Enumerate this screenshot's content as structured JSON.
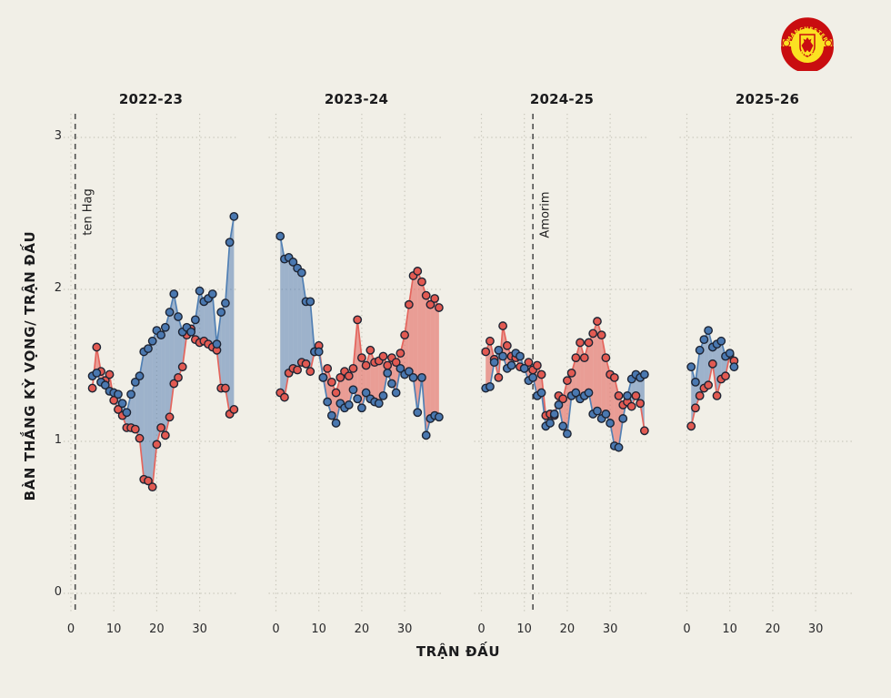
{
  "page": {
    "background": "#f1efe7"
  },
  "crest": {
    "club": "Manchester United",
    "top_text": "MANCHESTER",
    "bottom_text": "UNITED"
  },
  "axes": {
    "x_title": "TRẬN ĐẤU",
    "y_title": "BÀN THẮNG KỲ VỌNG/ TRẬN ĐẤU",
    "y_ticks": [
      0,
      1,
      2,
      3
    ],
    "x_ticks": [
      0,
      10,
      20,
      30
    ]
  },
  "chart_data": {
    "type": "line",
    "title": "",
    "xlabel": "TRẬN ĐẤU",
    "ylabel": "BÀN THẮNG KỲ VỌNG/ TRẬN ĐẤU",
    "ylim": [
      0,
      3.15
    ],
    "xlim": [
      0,
      39
    ],
    "grid": "dotted",
    "legend": "none",
    "facets": [
      {
        "title": "2022-23",
        "x_start": 5,
        "series": [
          {
            "name": "blue",
            "values": [
              1.43,
              1.45,
              1.39,
              1.37,
              1.33,
              1.32,
              1.31,
              1.25,
              1.19,
              1.31,
              1.39,
              1.43,
              1.59,
              1.61,
              1.66,
              1.73,
              1.7,
              1.75,
              1.85,
              1.97,
              1.82,
              1.72,
              1.75,
              1.72,
              1.8,
              1.99,
              1.92,
              1.94,
              1.97,
              1.64,
              1.85,
              1.91,
              2.31,
              2.48
            ]
          },
          {
            "name": "red",
            "values": [
              1.35,
              1.62,
              1.46,
              1.4,
              1.44,
              1.27,
              1.21,
              1.17,
              1.09,
              1.09,
              1.08,
              1.02,
              0.75,
              0.74,
              0.7,
              0.98,
              1.09,
              1.04,
              1.16,
              1.38,
              1.42,
              1.49,
              1.7,
              1.74,
              1.67,
              1.65,
              1.66,
              1.64,
              1.62,
              1.6,
              1.35,
              1.35,
              1.18,
              1.21
            ]
          }
        ]
      },
      {
        "title": "2023-24",
        "x_start": 1,
        "series": [
          {
            "name": "blue",
            "values": [
              2.35,
              2.2,
              2.21,
              2.18,
              2.14,
              2.11,
              1.92,
              1.92,
              1.59,
              1.59,
              1.42,
              1.26,
              1.17,
              1.12,
              1.25,
              1.22,
              1.24,
              1.34,
              1.28,
              1.22,
              1.32,
              1.28,
              1.26,
              1.25,
              1.3,
              1.45,
              1.38,
              1.32,
              1.48,
              1.44,
              1.46,
              1.42,
              1.19,
              1.42,
              1.04,
              1.15,
              1.17,
              1.16
            ]
          },
          {
            "name": "red",
            "values": [
              1.32,
              1.29,
              1.45,
              1.48,
              1.47,
              1.52,
              1.51,
              1.46,
              1.59,
              1.63,
              1.42,
              1.48,
              1.39,
              1.32,
              1.42,
              1.46,
              1.43,
              1.48,
              1.8,
              1.55,
              1.5,
              1.6,
              1.52,
              1.53,
              1.56,
              1.5,
              1.55,
              1.52,
              1.58,
              1.7,
              1.9,
              2.09,
              2.12,
              2.05,
              1.96,
              1.9,
              1.94,
              1.88
            ]
          }
        ]
      },
      {
        "title": "2024-25",
        "x_start": 1,
        "series": [
          {
            "name": "blue",
            "values": [
              1.35,
              1.36,
              1.52,
              1.6,
              1.56,
              1.48,
              1.5,
              1.58,
              1.56,
              1.48,
              1.4,
              1.42,
              1.3,
              1.32,
              1.1,
              1.12,
              1.18,
              1.24,
              1.1,
              1.05,
              1.3,
              1.32,
              1.28,
              1.3,
              1.32,
              1.18,
              1.2,
              1.15,
              1.18,
              1.12,
              0.97,
              0.96,
              1.15,
              1.3,
              1.41,
              1.44,
              1.42,
              1.44
            ]
          },
          {
            "name": "red",
            "values": [
              1.59,
              1.66,
              1.54,
              1.42,
              1.76,
              1.63,
              1.56,
              1.55,
              1.49,
              1.48,
              1.52,
              1.47,
              1.5,
              1.44,
              1.17,
              1.18,
              1.17,
              1.3,
              1.28,
              1.4,
              1.45,
              1.55,
              1.65,
              1.55,
              1.65,
              1.71,
              1.79,
              1.7,
              1.55,
              1.44,
              1.42,
              1.3,
              1.24,
              1.26,
              1.23,
              1.3,
              1.25,
              1.07
            ]
          }
        ]
      },
      {
        "title": "2025-26",
        "x_start": 1,
        "series": [
          {
            "name": "blue",
            "values": [
              1.49,
              1.39,
              1.6,
              1.67,
              1.73,
              1.62,
              1.64,
              1.66,
              1.56,
              1.58,
              1.49
            ]
          },
          {
            "name": "red",
            "values": [
              1.1,
              1.22,
              1.3,
              1.35,
              1.37,
              1.51,
              1.3,
              1.41,
              1.43,
              1.57,
              1.53
            ]
          }
        ]
      }
    ],
    "annotations": [
      {
        "label": "ten Hag",
        "facet": 0,
        "x": 1
      },
      {
        "label": "Amorim",
        "facet": 2,
        "x": 12
      }
    ],
    "colors": {
      "background": "#f1efe7",
      "grid": "#c7c5ba",
      "manager_line": "#4f4f4f",
      "blue_dot": "#4a78b0",
      "red_dot": "#e25a52",
      "blue_line": "#5180b4",
      "red_line": "#e4655d",
      "blue_area": "rgba(74,118,176,0.5)",
      "red_area": "rgba(226,90,82,0.55)",
      "dot_stroke": "#1d2433"
    }
  }
}
